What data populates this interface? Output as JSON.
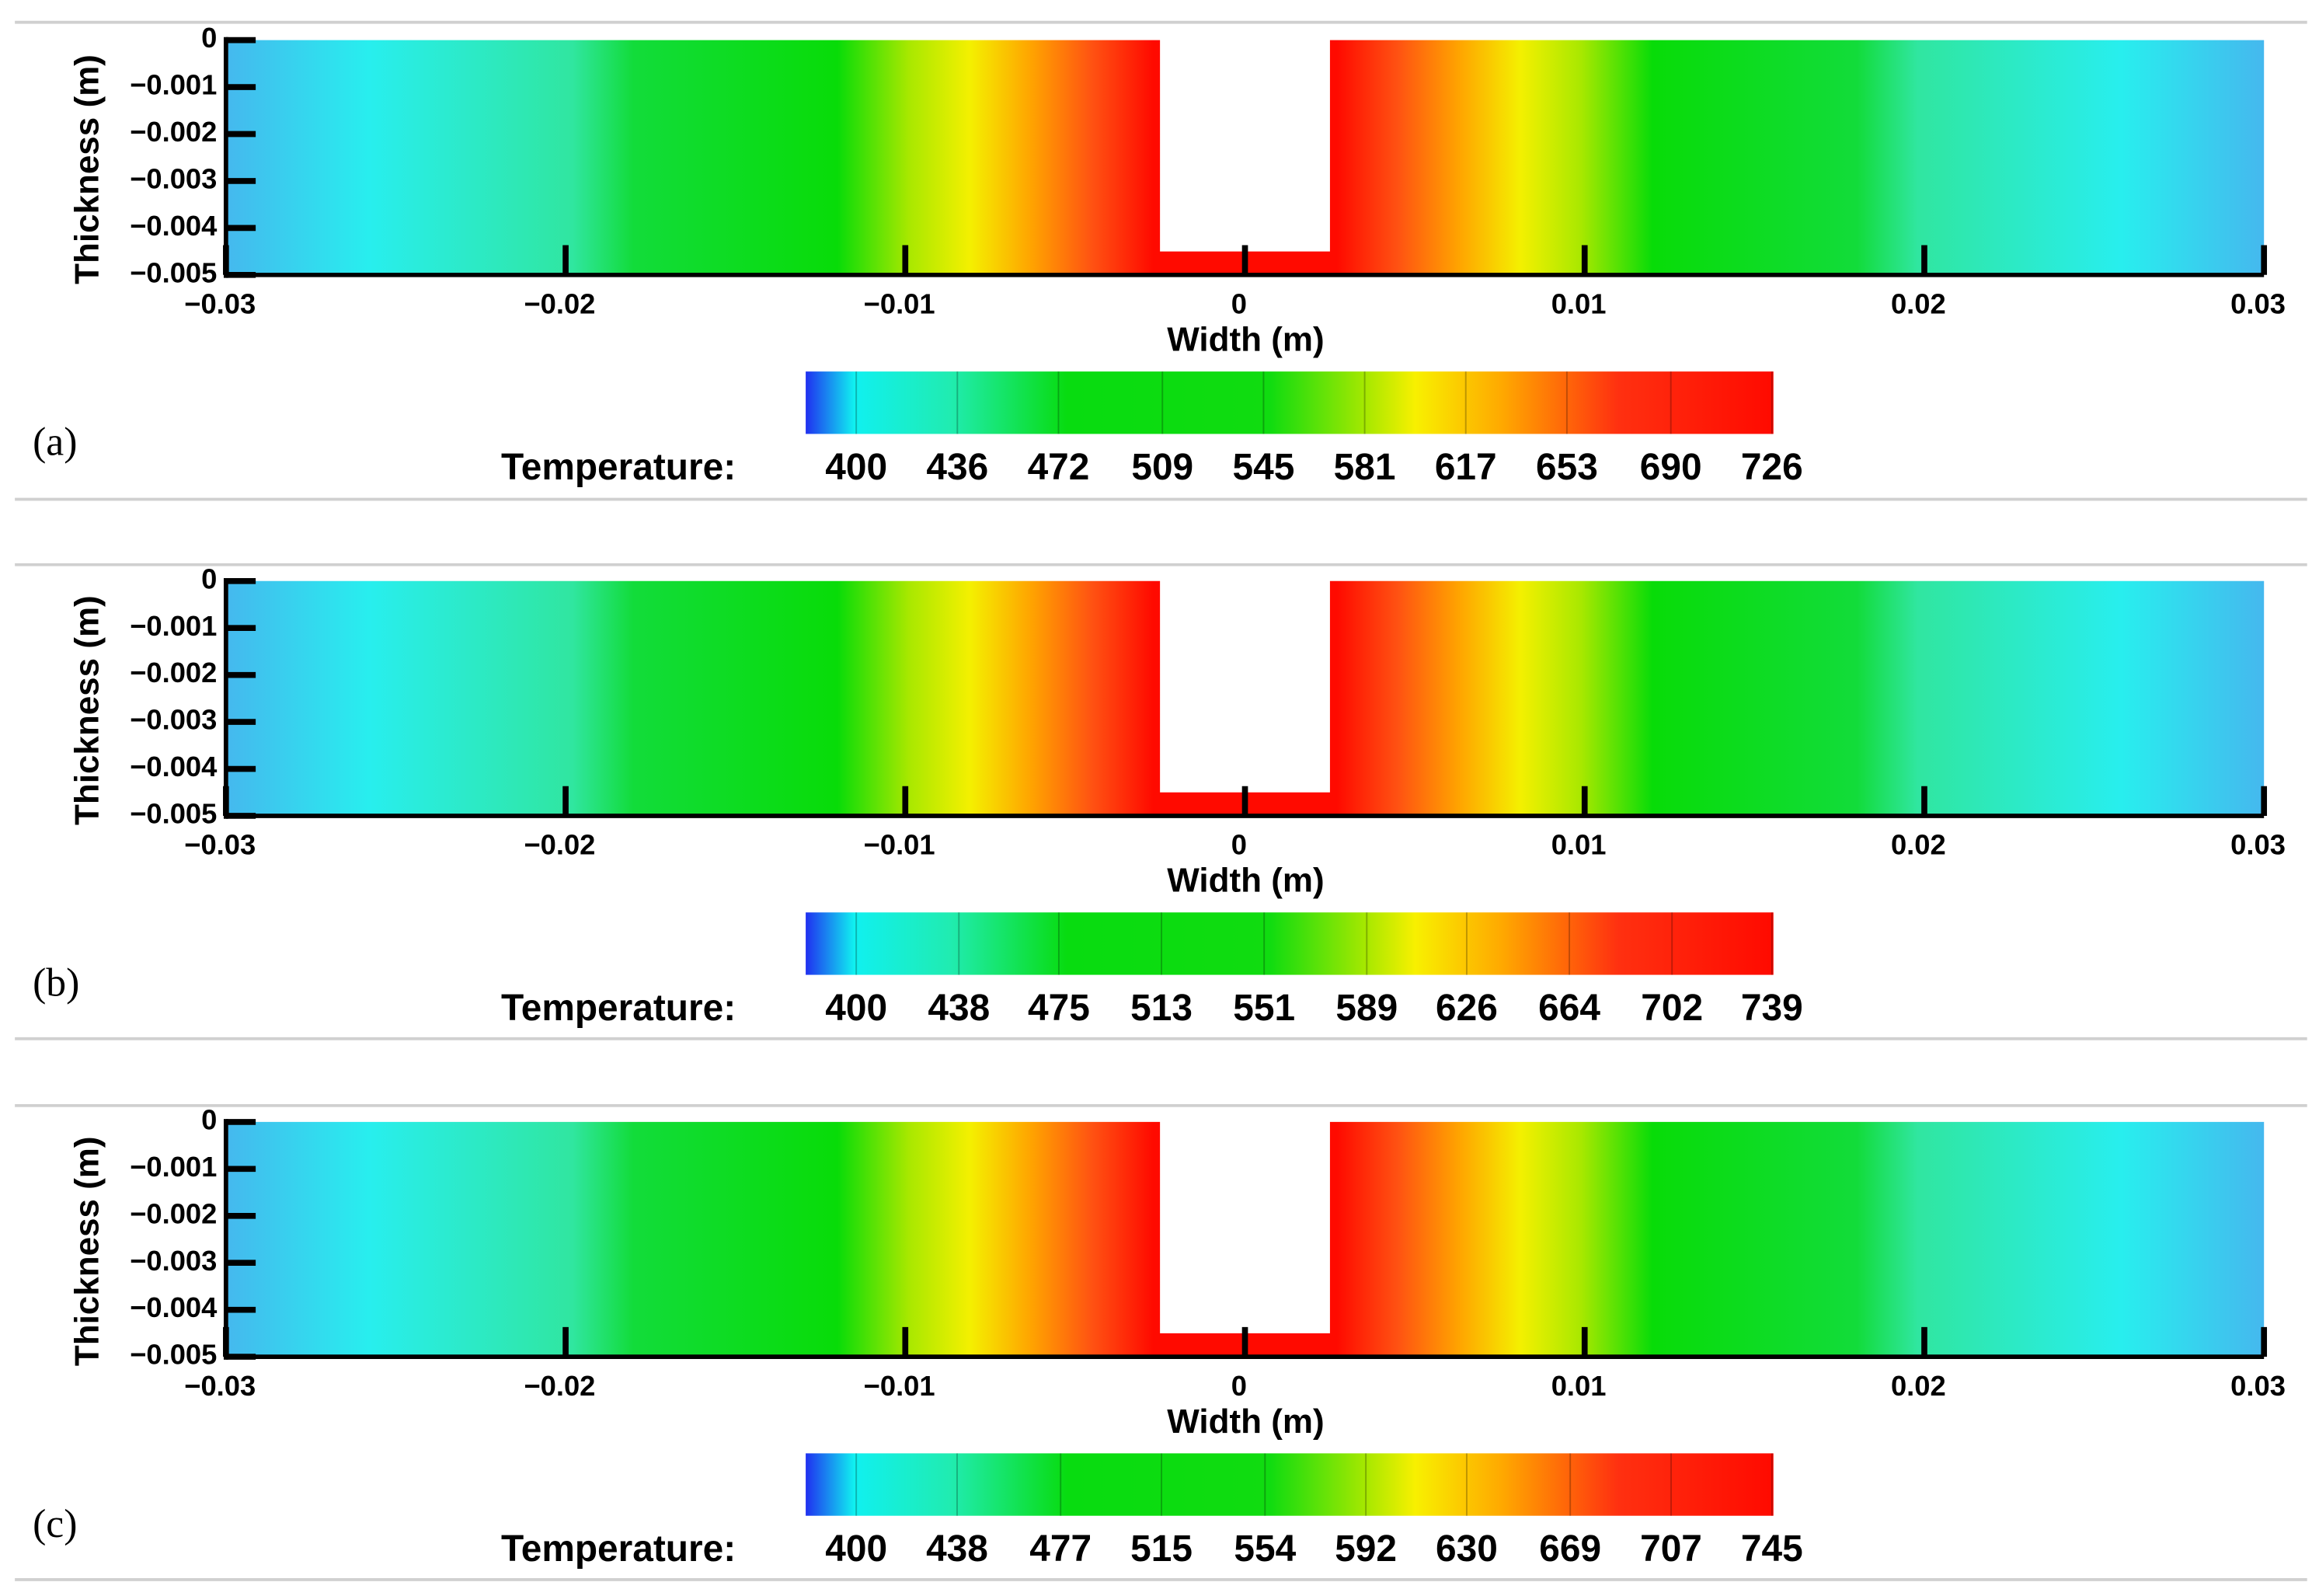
{
  "chart_data": [
    {
      "type": "heatmap",
      "label": "(a)",
      "x_label": "Width (m)",
      "y_label": "Thickness (m)",
      "xlim": [
        -0.03,
        0.03
      ],
      "ylim": [
        -0.005,
        0
      ],
      "xticks": [
        {
          "value": -0.03,
          "label": "−0.03"
        },
        {
          "value": -0.02,
          "label": "−0.02"
        },
        {
          "value": -0.01,
          "label": "−0.01"
        },
        0,
        0.01,
        0.02,
        0.03
      ],
      "yticks": [
        0,
        {
          "value": -0.001,
          "label": "−0.001"
        },
        {
          "value": -0.002,
          "label": "−0.002"
        },
        {
          "value": -0.003,
          "label": "−0.003"
        },
        {
          "value": -0.004,
          "label": "−0.004"
        },
        {
          "value": -0.005,
          "label": "−0.005"
        }
      ],
      "colorbar": {
        "label": "Temperature:",
        "ticks": [
          400,
          436,
          472,
          509,
          545,
          581,
          617,
          653,
          690,
          726
        ]
      }
    },
    {
      "type": "heatmap",
      "label": "(b)",
      "x_label": "Width (m)",
      "y_label": "Thickness (m)",
      "xlim": [
        -0.03,
        0.03
      ],
      "ylim": [
        -0.005,
        0
      ],
      "xticks": [
        {
          "value": -0.03,
          "label": "−0.03"
        },
        {
          "value": -0.02,
          "label": "−0.02"
        },
        {
          "value": -0.01,
          "label": "−0.01"
        },
        0,
        0.01,
        0.02,
        0.03
      ],
      "yticks": [
        0,
        {
          "value": -0.001,
          "label": "−0.001"
        },
        {
          "value": -0.002,
          "label": "−0.002"
        },
        {
          "value": -0.003,
          "label": "−0.003"
        },
        {
          "value": -0.004,
          "label": "−0.004"
        },
        {
          "value": -0.005,
          "label": "−0.005"
        }
      ],
      "colorbar": {
        "label": "Temperature:",
        "ticks": [
          400,
          438,
          475,
          513,
          551,
          589,
          626,
          664,
          702,
          739
        ]
      }
    },
    {
      "type": "heatmap",
      "label": "(c)",
      "x_label": "Width (m)",
      "y_label": "Thickness (m)",
      "xlim": [
        -0.03,
        0.03
      ],
      "ylim": [
        -0.005,
        0
      ],
      "xticks": [
        {
          "value": -0.03,
          "label": "−0.03"
        },
        {
          "value": -0.02,
          "label": "−0.02"
        },
        {
          "value": -0.01,
          "label": "−0.01"
        },
        0,
        0.01,
        0.02,
        0.03
      ],
      "yticks": [
        0,
        {
          "value": -0.001,
          "label": "−0.001"
        },
        {
          "value": -0.002,
          "label": "−0.002"
        },
        {
          "value": -0.003,
          "label": "−0.003"
        },
        {
          "value": -0.004,
          "label": "−0.004"
        },
        {
          "value": -0.005,
          "label": "−0.005"
        }
      ],
      "colorbar": {
        "label": "Temperature:",
        "ticks": [
          400,
          438,
          477,
          515,
          554,
          592,
          630,
          669,
          707,
          745
        ]
      }
    }
  ]
}
